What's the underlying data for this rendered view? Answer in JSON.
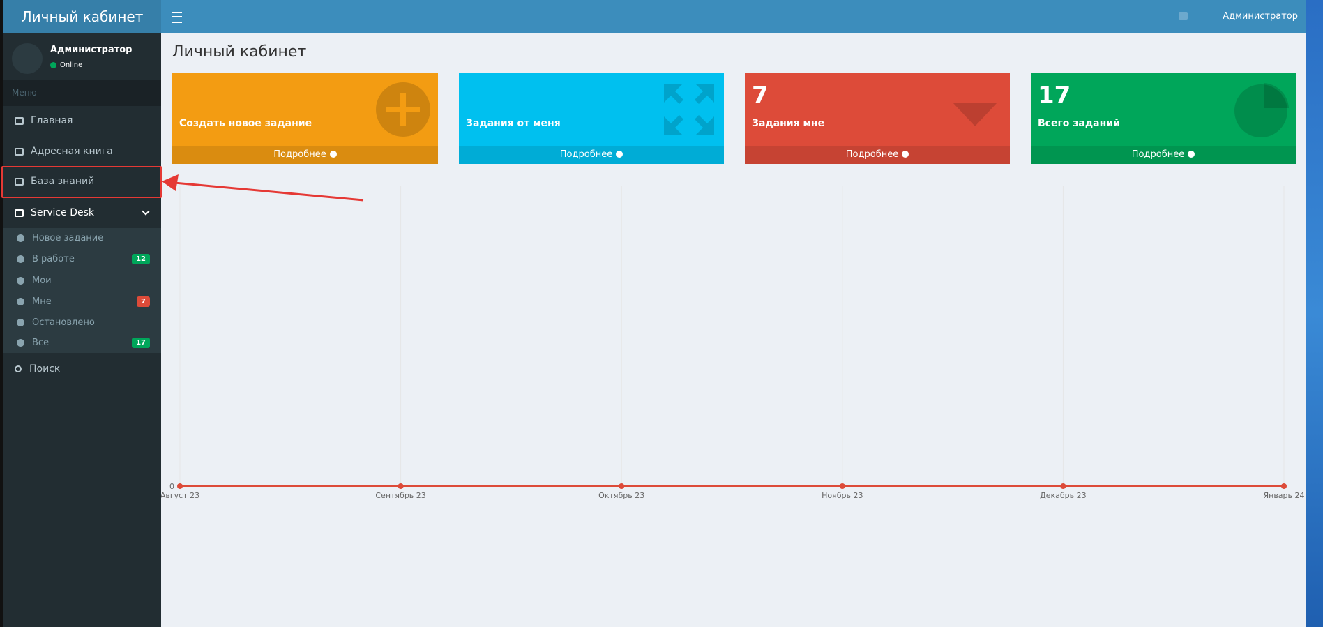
{
  "header": {
    "logo": "Личный кабинет",
    "user": "Администратор"
  },
  "sidebar": {
    "user": {
      "name": "Администратор",
      "status": "Online"
    },
    "menu_header": "Меню",
    "items": [
      {
        "label": "Главная"
      },
      {
        "label": "Адресная книга"
      },
      {
        "label": "База знаний"
      },
      {
        "label": "Service Desk"
      }
    ],
    "submenu": [
      {
        "label": "Новое задание"
      },
      {
        "label": "В работе",
        "badge": 12
      },
      {
        "label": "Мои"
      },
      {
        "label": "Мне",
        "badge": 7
      },
      {
        "label": "Остановлено"
      },
      {
        "label": "Все",
        "badge": 17
      }
    ],
    "search": "Поиск"
  },
  "content": {
    "title": "Личный кабинет",
    "boxes": [
      {
        "label": "Создать новое задание",
        "footer": "Подробнее"
      },
      {
        "label": "Задания от меня",
        "footer": "Подробнее"
      },
      {
        "value": 7,
        "label": "Задания мне",
        "footer": "Подробнее"
      },
      {
        "value": 17,
        "label": "Всего заданий",
        "footer": "Подробнее"
      }
    ]
  },
  "chart_data": {
    "type": "line",
    "categories": [
      "Август 23",
      "Сентябрь 23",
      "Октябрь 23",
      "Ноябрь 23",
      "Декабрь 23",
      "Январь 24"
    ],
    "values": [
      0,
      0,
      0,
      0,
      0,
      0
    ],
    "color": "#dd4b39",
    "ylim": [
      0,
      1
    ],
    "yticks": [
      0
    ],
    "grid": true
  }
}
